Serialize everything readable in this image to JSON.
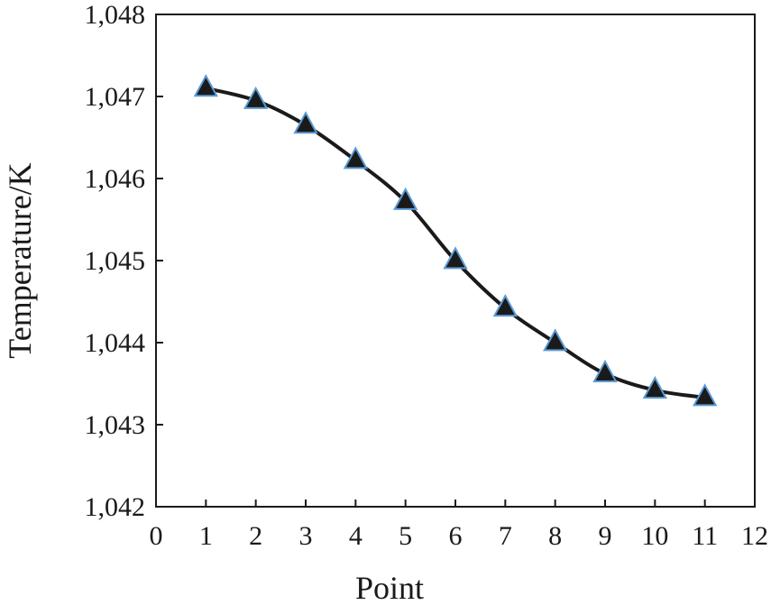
{
  "chart_data": {
    "type": "line",
    "title": "",
    "xlabel": "Point",
    "ylabel": "Temperature/K",
    "xlim": [
      0,
      12
    ],
    "ylim": [
      1042,
      1048
    ],
    "xticks": [
      0,
      1,
      2,
      3,
      4,
      5,
      6,
      7,
      8,
      9,
      10,
      11,
      12
    ],
    "xtick_labels": [
      "0",
      "1",
      "2",
      "3",
      "4",
      "5",
      "6",
      "7",
      "8",
      "9",
      "10",
      "11",
      "12"
    ],
    "yticks": [
      1042,
      1043,
      1044,
      1045,
      1046,
      1047,
      1048
    ],
    "ytick_labels": [
      "1,042",
      "1,043",
      "1,044",
      "1,045",
      "1,046",
      "1,047",
      "1,048"
    ],
    "grid": false,
    "legend": "none",
    "series": [
      {
        "marker": "triangle",
        "marker_fill": "#1a1a1a",
        "marker_edge": "#5b9bd5",
        "line_color": "#1a1a1a",
        "smooth": true,
        "x": [
          1,
          2,
          3,
          4,
          5,
          6,
          7,
          8,
          9,
          10,
          11
        ],
        "y": [
          1047.1,
          1046.95,
          1046.65,
          1046.22,
          1045.72,
          1045.0,
          1044.42,
          1044.0,
          1043.62,
          1043.42,
          1043.33
        ]
      }
    ]
  }
}
